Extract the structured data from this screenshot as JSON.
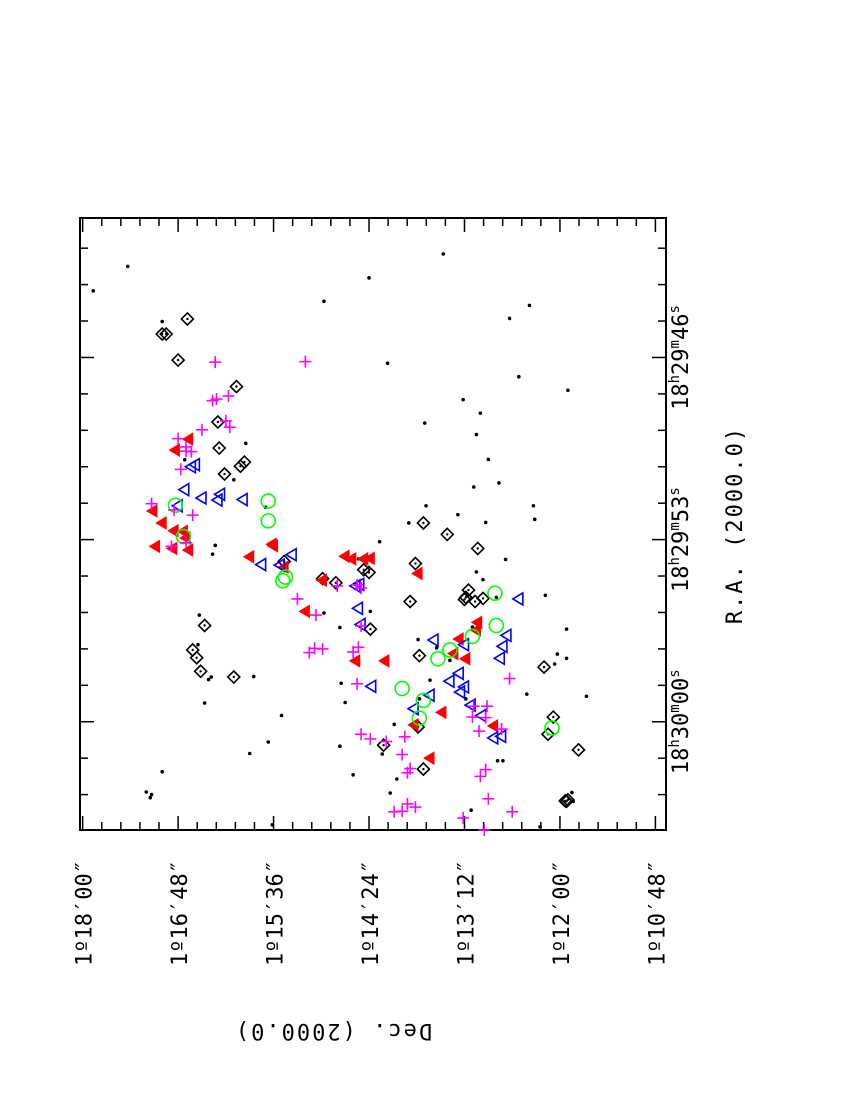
{
  "chart_data": {
    "type": "scatter",
    "orientation": "rotated-90",
    "title": "",
    "xlabel": "R.A. (2000.0)",
    "ylabel": "Dec. (2000.0)",
    "x_axis": {
      "unit": "RA seconds past 18h29m",
      "lim": [
        40.64,
        64.16
      ],
      "ticks": [
        {
          "value": 46,
          "label_parts": [
            "18",
            "h",
            "29",
            "m",
            "46",
            "s"
          ]
        },
        {
          "value": 53,
          "label_parts": [
            "18",
            "h",
            "29",
            "m",
            "53",
            "s"
          ]
        },
        {
          "value": 60,
          "label_parts": [
            "18",
            "h",
            "30",
            "m",
            "00",
            "s"
          ]
        }
      ],
      "minor_step": 1.4
    },
    "y_axis": {
      "unit": "Dec arcsec past 1d10m",
      "lim": [
        40,
        482
      ],
      "ticks": [
        {
          "value": 48,
          "label": "1º10′48″"
        },
        {
          "value": 120,
          "label": "1º12′00″"
        },
        {
          "value": 192,
          "label": "1º13′12″"
        },
        {
          "value": 264,
          "label": "1º14′24″"
        },
        {
          "value": 336,
          "label": "1º15′36″"
        },
        {
          "value": 408,
          "label": "1º16′48″"
        },
        {
          "value": 480,
          "label": "1º18′00″"
        }
      ],
      "minor_step": 14.4
    },
    "grid": false,
    "legend": "none",
    "series": [
      {
        "marker": "dot",
        "color": "#000000",
        "points": [
          [
            43.44,
            472
          ],
          [
            42.5,
            446
          ],
          [
            44.62,
            420
          ],
          [
            49.93,
            403
          ],
          [
            49.3,
            357
          ],
          [
            50.7,
            366
          ],
          [
            51.76,
            342
          ],
          [
            53.56,
            382
          ],
          [
            53.22,
            380
          ],
          [
            55.9,
            392
          ],
          [
            57.04,
            393
          ],
          [
            59.28,
            388
          ],
          [
            58.38,
            385
          ],
          [
            58.28,
            383
          ],
          [
            62.7,
            432
          ],
          [
            62.92,
            429
          ],
          [
            62.8,
            428
          ],
          [
            61.92,
            420
          ],
          [
            60.78,
            340
          ],
          [
            59.76,
            330
          ],
          [
            58.26,
            351
          ],
          [
            61.22,
            354
          ],
          [
            55.82,
            298
          ],
          [
            56.38,
            286
          ],
          [
            58.52,
            285
          ],
          [
            59.26,
            282
          ],
          [
            60.94,
            286
          ],
          [
            62.04,
            276
          ],
          [
            61.24,
            254
          ],
          [
            62.74,
            248
          ],
          [
            55.76,
            263
          ],
          [
            53.8,
            266
          ],
          [
            53.74,
            272
          ],
          [
            53.08,
            256
          ],
          [
            51.7,
            221
          ],
          [
            52.36,
            234
          ],
          [
            56.84,
            227
          ],
          [
            59.12,
            226
          ],
          [
            60.1,
            245
          ],
          [
            62.2,
            243
          ],
          [
            58.4,
            218
          ],
          [
            57.16,
            213
          ],
          [
            57.64,
            203
          ],
          [
            59.12,
            191
          ],
          [
            52.04,
            197
          ],
          [
            50.98,
            185
          ],
          [
            48.96,
            183
          ],
          [
            47.62,
            193
          ],
          [
            46.74,
            151
          ],
          [
            52.34,
            176
          ],
          [
            53.76,
            161
          ],
          [
            55.22,
            168
          ],
          [
            56.36,
            186
          ],
          [
            61.5,
            167
          ],
          [
            61.5,
            163
          ],
          [
            58.94,
            145
          ],
          [
            56.44,
            115
          ],
          [
            57.56,
            115
          ],
          [
            57.4,
            122
          ],
          [
            57.78,
            124
          ],
          [
            59.02,
            100
          ],
          [
            63.4,
            187
          ],
          [
            63.06,
            110
          ],
          [
            62.72,
            111
          ],
          [
            64.04,
            135
          ],
          [
            55.14,
            131
          ],
          [
            44.5,
            158
          ],
          [
            44.0,
            143
          ],
          [
            42.02,
            208
          ],
          [
            42.94,
            264
          ],
          [
            43.84,
            298
          ],
          [
            46.22,
            250
          ],
          [
            48.52,
            222
          ],
          [
            48.14,
            180
          ],
          [
            49.92,
            174
          ],
          [
            50.82,
            166
          ],
          [
            51.7,
            140
          ],
          [
            52.22,
            139
          ],
          [
            47.26,
            114
          ],
          [
            54.24,
            183
          ],
          [
            54.54,
            178
          ],
          [
            63.96,
            337
          ]
        ]
      },
      {
        "marker": "diamond",
        "color": "#000000",
        "points": [
          [
            44.52,
            401
          ],
          [
            45.1,
            417
          ],
          [
            45.1,
            420
          ],
          [
            46.1,
            408
          ],
          [
            47.12,
            364
          ],
          [
            48.48,
            378
          ],
          [
            49.48,
            377
          ],
          [
            50.48,
            373
          ],
          [
            50.18,
            361
          ],
          [
            50.02,
            358
          ],
          [
            56.3,
            388
          ],
          [
            57.24,
            397
          ],
          [
            57.54,
            394
          ],
          [
            58.06,
            391
          ],
          [
            58.28,
            366
          ],
          [
            53.84,
            328
          ],
          [
            54.16,
            268
          ],
          [
            54.5,
            299
          ],
          [
            54.66,
            289
          ],
          [
            54.26,
            264
          ],
          [
            56.44,
            263
          ],
          [
            57.46,
            226
          ],
          [
            60.2,
            227
          ],
          [
            60.9,
            253
          ],
          [
            55.26,
            178
          ],
          [
            55.38,
            184
          ],
          [
            55.22,
            191
          ],
          [
            55.38,
            233
          ],
          [
            53.92,
            229
          ],
          [
            52.36,
            223
          ],
          [
            52.8,
            205
          ],
          [
            53.34,
            182
          ],
          [
            54.94,
            189
          ],
          [
            55.3,
            192
          ],
          [
            57.9,
            132
          ],
          [
            59.82,
            125
          ],
          [
            60.48,
            129
          ],
          [
            61.08,
            106
          ],
          [
            63.06,
            115
          ],
          [
            63.04,
            116
          ],
          [
            63.0,
            114
          ],
          [
            64.52,
            140
          ],
          [
            61.82,
            223
          ]
        ]
      },
      {
        "marker": "filled-triangle",
        "color": "#ff0000",
        "points": [
          [
            49.14,
            400
          ],
          [
            49.56,
            410
          ],
          [
            52.68,
            404
          ],
          [
            52.66,
            411
          ],
          [
            52.36,
            420
          ],
          [
            51.9,
            427
          ],
          [
            53.26,
            425
          ],
          [
            53.34,
            412
          ],
          [
            53.4,
            400
          ],
          [
            52.94,
            402
          ],
          [
            53.66,
            354
          ],
          [
            53.18,
            337
          ],
          [
            54.06,
            328
          ],
          [
            53.24,
            336
          ],
          [
            55.76,
            312
          ],
          [
            54.56,
            299
          ],
          [
            53.74,
            277
          ],
          [
            53.74,
            268
          ],
          [
            53.72,
            263
          ],
          [
            53.64,
            282
          ],
          [
            57.66,
            252
          ],
          [
            60.12,
            230
          ],
          [
            59.64,
            209
          ],
          [
            61.4,
            218
          ],
          [
            57.66,
            274
          ],
          [
            57.38,
            200
          ],
          [
            56.48,
            183
          ],
          [
            56.18,
            182
          ],
          [
            56.82,
            196
          ],
          [
            57.58,
            191
          ],
          [
            60.16,
            170
          ],
          [
            54.3,
            227
          ]
        ]
      },
      {
        "marker": "open-triangle",
        "color": "#0000ff",
        "points": [
          [
            50.2,
            398
          ],
          [
            50.12,
            395
          ],
          [
            51.7,
            408
          ],
          [
            51.08,
            403
          ],
          [
            51.4,
            390
          ],
          [
            51.26,
            376
          ],
          [
            51.48,
            378
          ],
          [
            51.46,
            359
          ],
          [
            53.96,
            345
          ],
          [
            53.58,
            322
          ],
          [
            53.98,
            331
          ],
          [
            54.72,
            271
          ],
          [
            54.78,
            274
          ],
          [
            55.64,
            272
          ],
          [
            56.26,
            270
          ],
          [
            58.64,
            262
          ],
          [
            59.5,
            230
          ],
          [
            58.98,
            218
          ],
          [
            58.44,
            203
          ],
          [
            58.86,
            195
          ],
          [
            58.66,
            192
          ],
          [
            59.36,
            187
          ],
          [
            59.76,
            179
          ],
          [
            60.62,
            170
          ],
          [
            60.56,
            164
          ],
          [
            58.14,
            196
          ],
          [
            55.28,
            151
          ],
          [
            56.68,
            160
          ],
          [
            57.1,
            163
          ],
          [
            57.56,
            165
          ],
          [
            57.04,
            192
          ],
          [
            56.86,
            215
          ]
        ]
      },
      {
        "marker": "open-circle",
        "color": "#00ff00",
        "points": [
          [
            51.68,
            410
          ],
          [
            52.88,
            404
          ],
          [
            54.58,
            329
          ],
          [
            54.44,
            327
          ],
          [
            51.52,
            340
          ],
          [
            52.28,
            340
          ],
          [
            58.72,
            239
          ],
          [
            59.86,
            226
          ],
          [
            59.18,
            223
          ],
          [
            57.58,
            212
          ],
          [
            57.24,
            203
          ],
          [
            56.72,
            186
          ],
          [
            55.06,
            169
          ],
          [
            56.3,
            168
          ],
          [
            60.24,
            126
          ]
        ]
      },
      {
        "marker": "plus",
        "color": "#ff00ff",
        "points": [
          [
            46.16,
            312
          ],
          [
            46.18,
            380
          ],
          [
            47.48,
            370
          ],
          [
            47.6,
            379
          ],
          [
            47.66,
            382
          ],
          [
            48.44,
            372
          ],
          [
            48.68,
            369
          ],
          [
            48.78,
            390
          ],
          [
            49.12,
            408
          ],
          [
            49.44,
            402
          ],
          [
            49.62,
            398
          ],
          [
            49.6,
            402
          ],
          [
            50.3,
            406
          ],
          [
            51.62,
            428
          ],
          [
            51.86,
            411
          ],
          [
            52.06,
            397
          ],
          [
            53.26,
            413
          ],
          [
            53.12,
            402
          ],
          [
            55.28,
            318
          ],
          [
            55.9,
            304
          ],
          [
            57.2,
            299
          ],
          [
            57.34,
            309
          ],
          [
            57.18,
            305
          ],
          [
            54.86,
            270
          ],
          [
            54.78,
            288
          ],
          [
            54.74,
            273
          ],
          [
            56.32,
            270
          ],
          [
            57.32,
            276
          ],
          [
            57.14,
            272
          ],
          [
            58.54,
            273
          ],
          [
            60.66,
            263
          ],
          [
            60.48,
            270
          ],
          [
            60.76,
            251
          ],
          [
            61.26,
            239
          ],
          [
            61.8,
            233
          ],
          [
            61.96,
            235
          ],
          [
            63.46,
            245
          ],
          [
            63.44,
            239
          ],
          [
            63.28,
            229
          ],
          [
            63.16,
            235
          ],
          [
            60.58,
            237
          ],
          [
            59.4,
            175
          ],
          [
            59.4,
            185
          ],
          [
            59.82,
            186
          ],
          [
            59.84,
            176
          ],
          [
            60.36,
            181
          ],
          [
            61.84,
            176
          ],
          [
            62.1,
            180
          ],
          [
            62.96,
            174
          ],
          [
            63.7,
            193
          ],
          [
            63.46,
            156
          ],
          [
            64.16,
            177
          ],
          [
            65.6,
            181
          ],
          [
            65.58,
            164
          ],
          [
            58.34,
            158
          ],
          [
            60.28,
            164
          ]
        ]
      }
    ]
  }
}
